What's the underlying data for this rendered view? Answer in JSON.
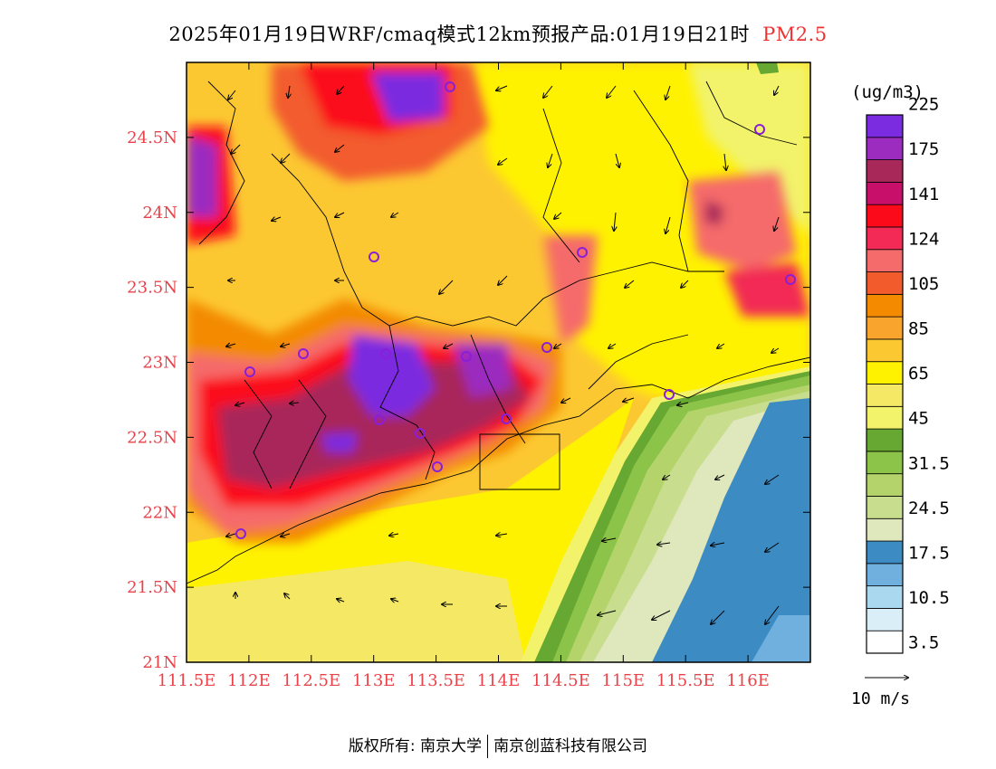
{
  "header": {
    "title": "2025年01月19日WRF/cmaq模式12km预报产品:01月19日21时",
    "pollutant": "PM2.5"
  },
  "map": {
    "lon_range": [
      111.5,
      116.5
    ],
    "lat_range": [
      21,
      25
    ],
    "lon_ticks": [
      "111.5E",
      "112E",
      "112.5E",
      "113E",
      "113.5E",
      "114E",
      "114.5E",
      "115E",
      "115.5E",
      "116E"
    ],
    "lat_ticks": [
      "21N",
      "21.5N",
      "22N",
      "22.5N",
      "23N",
      "23.5N",
      "24N",
      "24.5N"
    ],
    "lat_tick_values": [
      21,
      21.5,
      22,
      22.5,
      23,
      23.5,
      24,
      24.5
    ],
    "lon_tick_values": [
      111.5,
      112,
      112.5,
      113,
      113.5,
      114,
      114.5,
      115,
      115.5,
      116
    ]
  },
  "legend": {
    "unit": "(ug/m3)",
    "colors": [
      "#ffffff",
      "#daeef8",
      "#a9d8ef",
      "#6fb0de",
      "#3d8bc3",
      "#dfe7bd",
      "#c9dd8f",
      "#b4d46b",
      "#8cc44a",
      "#66a832",
      "#f2f36b",
      "#f4e865",
      "#fff200",
      "#fcc832",
      "#f9a52d",
      "#f38a00",
      "#f25c2d",
      "#f56a6a",
      "#f22a55",
      "#fb0a1a",
      "#c8106a",
      "#a8285a",
      "#9b2cbf",
      "#7b2be0"
    ],
    "labels": [
      "3.5",
      "10.5",
      "17.5",
      "24.5",
      "31.5",
      "45",
      "65",
      "85",
      "105",
      "124",
      "141",
      "175",
      "225"
    ],
    "wind_scale_label": "10 m/s"
  },
  "footer": {
    "owner_left": "版权所有: 南京大学",
    "owner_right": "南京创蓝科技有限公司"
  }
}
